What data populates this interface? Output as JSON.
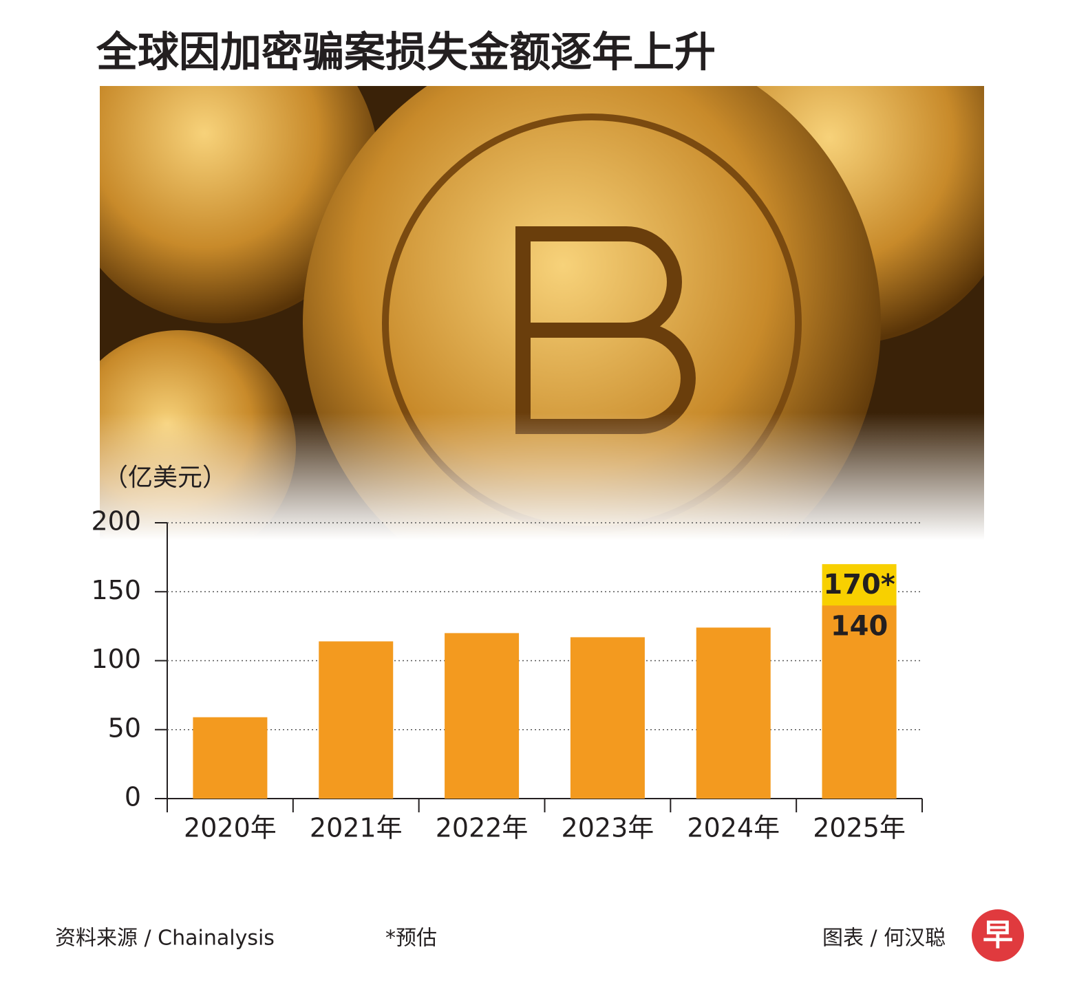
{
  "chart_data": {
    "type": "bar",
    "title": "全球因加密骗案损失金额逐年上升",
    "y_label": "（亿美元）",
    "categories": [
      "2020年",
      "2021年",
      "2022年",
      "2023年",
      "2024年",
      "2025年"
    ],
    "series": [
      {
        "color": "#f8d000",
        "values": [
          null,
          null,
          null,
          null,
          null,
          170
        ],
        "value_labels": [
          null,
          null,
          null,
          null,
          null,
          "170*"
        ]
      },
      {
        "color": "#f39a1f",
        "values": [
          59,
          114,
          120,
          117,
          124,
          140
        ],
        "value_labels": [
          null,
          null,
          null,
          null,
          null,
          "140"
        ]
      }
    ],
    "ylim": [
      0,
      200
    ],
    "yticks": [
      0,
      50,
      100,
      150,
      200
    ],
    "grid": true,
    "source": "资料来源 / Chainalysis",
    "note": "*预估",
    "credit": "图表 / 何汉聪",
    "logo": "早"
  }
}
